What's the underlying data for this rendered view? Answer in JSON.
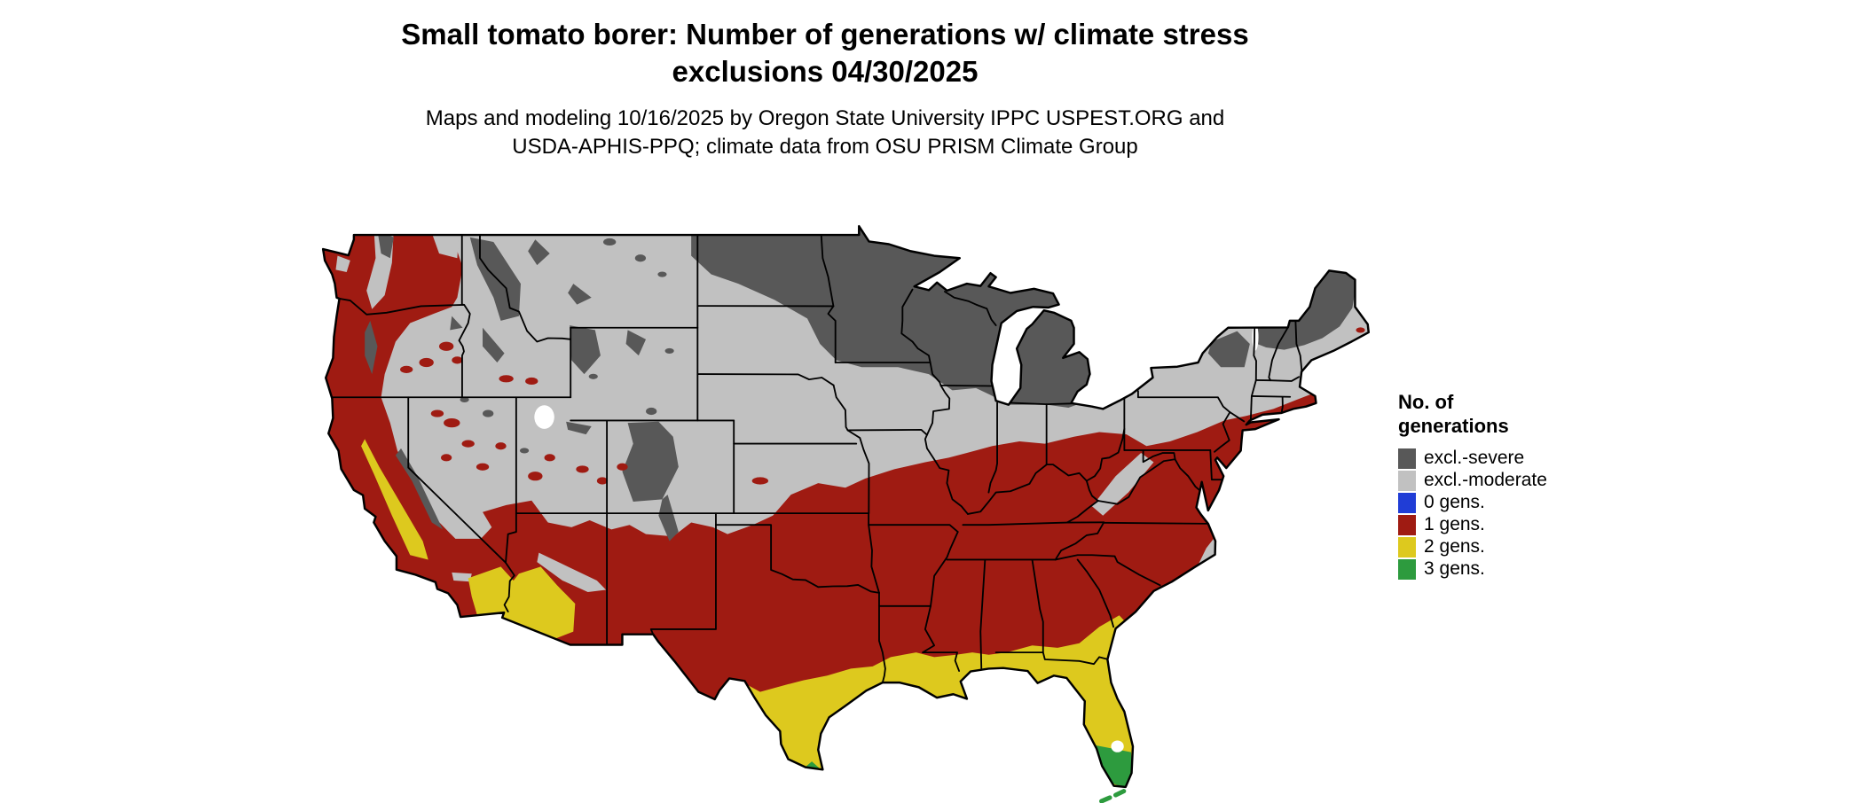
{
  "title": {
    "line1": "Small tomato borer: Number of generations w/ climate stress",
    "line2": "exclusions 04/30/2025"
  },
  "subtitle": {
    "line1": "Maps and modeling 10/16/2025 by Oregon State University IPPC USPEST.ORG and",
    "line2": "USDA-APHIS-PPQ; climate data from OSU PRISM Climate Group"
  },
  "legend": {
    "title_line1": "No. of",
    "title_line2": "generations",
    "items": [
      {
        "key": "severe",
        "label": "excl.-severe",
        "color": "#585858"
      },
      {
        "key": "moderate",
        "label": "excl.-moderate",
        "color": "#c1c1c1"
      },
      {
        "key": "gen0",
        "label": "0 gens.",
        "color": "#203dd6"
      },
      {
        "key": "gen1",
        "label": "1 gens.",
        "color": "#9f1b12"
      },
      {
        "key": "gen2",
        "label": "2 gens.",
        "color": "#ddc91e"
      },
      {
        "key": "gen3",
        "label": "3 gens.",
        "color": "#2d9b3e"
      }
    ]
  },
  "map": {
    "region": "Continental United States",
    "background": "#ffffff",
    "border_color": "#000000"
  }
}
